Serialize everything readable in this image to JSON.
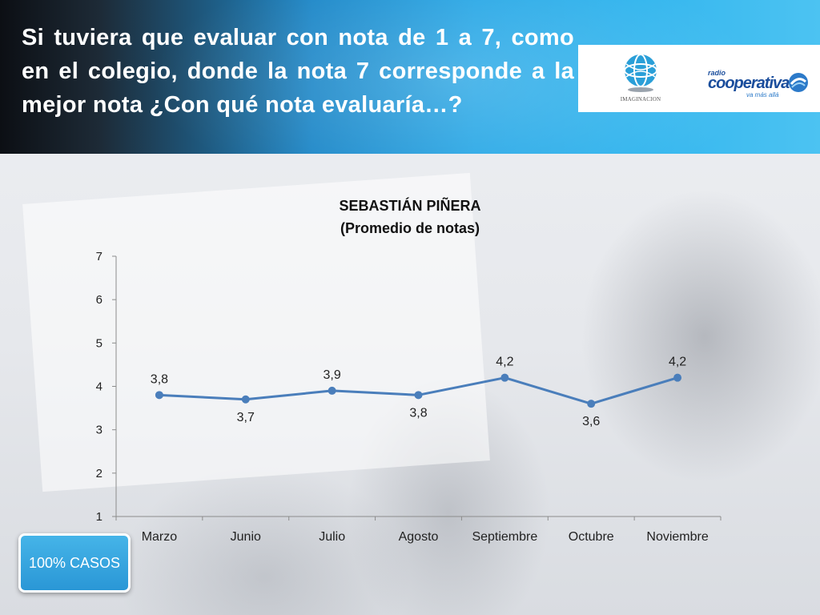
{
  "header": {
    "title": "Si tuviera que evaluar con nota de 1 a 7, como en el colegio, donde la nota 7 corresponde a la mejor nota ¿Con qué nota evaluaría…?",
    "logo_left_text": "IMAGINACION",
    "logo_right": {
      "radio": "radio",
      "name": "cooperativa",
      "tagline": "va más allá"
    }
  },
  "colors": {
    "line": "#4a7ebb",
    "header_blue": "#2aa8e6",
    "button_blue": "#2a97d6"
  },
  "badge": {
    "label": "100% CASOS"
  },
  "chart_data": {
    "type": "line",
    "title": "SEBASTIÁN PIÑERA",
    "subtitle": "(Promedio de notas)",
    "categories": [
      "Marzo",
      "Junio",
      "Julio",
      "Agosto",
      "Septiembre",
      "Octubre",
      "Noviembre"
    ],
    "values": [
      3.8,
      3.7,
      3.9,
      3.8,
      4.2,
      3.6,
      4.2
    ],
    "data_labels": [
      "3,8",
      "3,7",
      "3,9",
      "3,8",
      "4,2",
      "3,6",
      "4,2"
    ],
    "ylim": [
      1,
      7
    ],
    "yticks": [
      "1",
      "2",
      "3",
      "4",
      "5",
      "6",
      "7"
    ],
    "xlabel": "",
    "ylabel": "",
    "grid": false,
    "legend": "none"
  }
}
